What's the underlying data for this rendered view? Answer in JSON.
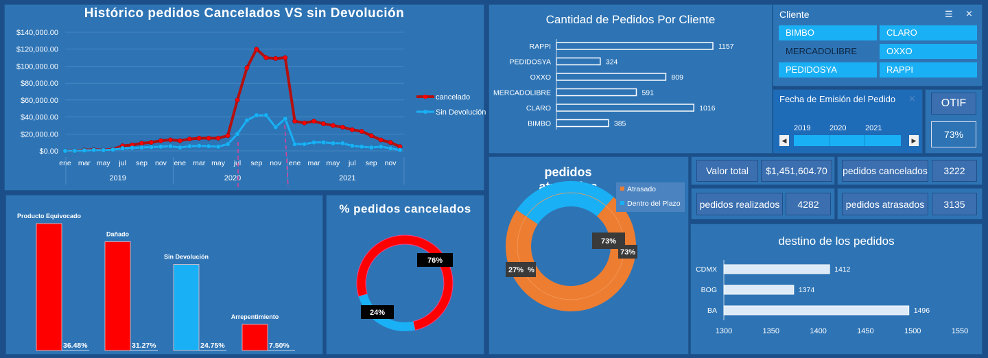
{
  "line_chart": {
    "title": "Histórico pedidos Cancelados VS sin Devolución",
    "y_ticks": [
      "$140,000.00",
      "$120,000.00",
      "$100,000.00",
      "$80,000.00",
      "$60,000.00",
      "$40,000.00",
      "$20,000.00",
      "$0.00"
    ],
    "month_labels": [
      "ene",
      "mar",
      "may",
      "jul",
      "sep",
      "nov",
      "ene",
      "mar",
      "may",
      "jul",
      "sep",
      "nov",
      "ene",
      "mar",
      "may",
      "jul",
      "sep",
      "nov"
    ],
    "year_labels": [
      "2019",
      "2020",
      "2021"
    ],
    "legend": [
      "cancelado",
      "Sin Devolución"
    ]
  },
  "reasons_chart": {
    "labels": [
      "Producto Equivocado",
      "Dañado",
      "Sin Devolución",
      "Arrepentimiento"
    ],
    "pct_labels": [
      "36.48%",
      "31.27%",
      "24.75%",
      "7.50%"
    ]
  },
  "cancel_donut": {
    "title": "% pedidos cancelados",
    "labels": [
      "76%",
      "24%"
    ]
  },
  "client_chart": {
    "title": "Cantidad de Pedidos Por Cliente"
  },
  "slicer_cliente": {
    "title": "Cliente",
    "items": [
      "BIMBO",
      "CLARO",
      "MERCADOLIBRE",
      "OXXO",
      "PEDIDOSYA",
      "RAPPI"
    ]
  },
  "slicer_fecha": {
    "title": "Fecha de Emisión del Pedido",
    "years": [
      "2019",
      "2020",
      "2021"
    ]
  },
  "otif": {
    "label": "OTIF",
    "value": "73%"
  },
  "late_donut": {
    "title": "pedidos atrasados",
    "legend": [
      "Atrasado",
      "Dentro del Plazo"
    ],
    "labels": [
      "73%",
      "73%",
      "27%",
      "%"
    ]
  },
  "kpis": {
    "valor_label": "Valor total",
    "valor_value": "$1,451,604.70",
    "cancel_label": "pedidos cancelados",
    "cancel_value": "3222",
    "real_label": "pedidos realizados",
    "real_value": "4282",
    "atr_label": "pedidos atrasados",
    "atr_value": "3135"
  },
  "dest_chart": {
    "title": "destino de los pedidos",
    "x_ticks": [
      "1300",
      "1350",
      "1400",
      "1450",
      "1500",
      "1550"
    ]
  },
  "chart_data": [
    {
      "type": "line",
      "title": "Histórico pedidos Cancelados VS sin Devolución",
      "ylim": [
        0,
        140000
      ],
      "series": [
        {
          "name": "cancelado",
          "values": [
            0,
            0,
            1000,
            1500,
            1000,
            2000,
            6000,
            7000,
            9000,
            10000,
            12000,
            13000,
            12000,
            14000,
            15000,
            15000,
            15000,
            18000,
            60000,
            98000,
            120000,
            110000,
            109000,
            110000,
            35000,
            33000,
            35000,
            32000,
            30000,
            28000,
            25000,
            23000,
            18000,
            13000,
            10000,
            5000
          ]
        },
        {
          "name": "Sin Devolución",
          "values": [
            0,
            0,
            500,
            1000,
            800,
            1500,
            3000,
            3500,
            4000,
            4500,
            5000,
            5500,
            4000,
            5500,
            6000,
            5500,
            5000,
            8000,
            20000,
            36000,
            42000,
            42000,
            28000,
            38000,
            8000,
            8000,
            10000,
            10000,
            9000,
            9000,
            6000,
            5000,
            4000,
            5000,
            3000,
            1000
          ]
        }
      ]
    },
    {
      "type": "bar",
      "categories": [
        "Producto Equivocado",
        "Dañado",
        "Sin Devolución",
        "Arrepentimiento"
      ],
      "values": [
        36.48,
        31.27,
        24.75,
        7.5
      ]
    },
    {
      "type": "pie",
      "title": "% pedidos cancelados",
      "values": [
        76,
        24
      ]
    },
    {
      "type": "bar",
      "title": "Cantidad de Pedidos Por Cliente",
      "categories": [
        "RAPPI",
        "PEDIDOSYA",
        "OXXO",
        "MERCADOLIBRE",
        "CLARO",
        "BIMBO"
      ],
      "values": [
        1157,
        324,
        809,
        591,
        1016,
        385
      ]
    },
    {
      "type": "pie",
      "title": "pedidos atrasados",
      "categories": [
        "Atrasado",
        "Dentro del Plazo"
      ],
      "values": [
        73,
        27
      ]
    },
    {
      "type": "bar",
      "title": "destino de los pedidos",
      "categories": [
        "CDMX",
        "BOG",
        "BA"
      ],
      "values": [
        1412,
        1374,
        1496
      ],
      "xlim": [
        1300,
        1550
      ]
    }
  ],
  "colors": {
    "orange": "#ed7d31",
    "red": "#ff0000",
    "cyan": "#1ab0f5",
    "dark_red": "#b00000",
    "panel": "#2e74b5",
    "slicer_selected": "#1ab0f5"
  }
}
